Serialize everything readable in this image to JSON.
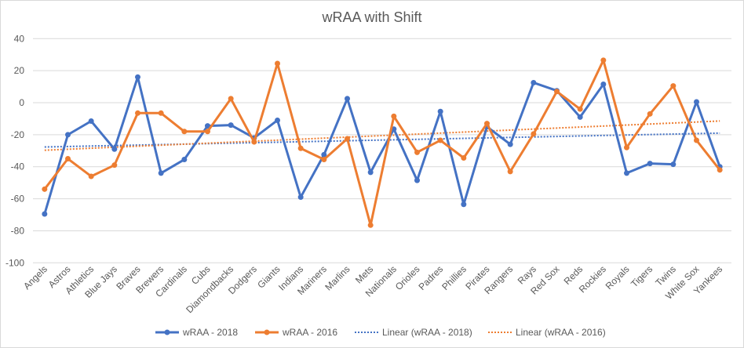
{
  "chart_data": {
    "type": "line",
    "title": "wRAA with Shift",
    "xlabel": "",
    "ylabel": "",
    "ylim": [
      -100,
      40
    ],
    "yticks": [
      40,
      20,
      0,
      -20,
      -40,
      -60,
      -80,
      -100
    ],
    "grid": true,
    "legend_position": "bottom",
    "categories": [
      "Angels",
      "Astros",
      "Athletics",
      "Blue Jays",
      "Braves",
      "Brewers",
      "Cardinals",
      "Cubs",
      "Diamondbacks",
      "Dodgers",
      "Giants",
      "Indians",
      "Mariners",
      "Marlins",
      "Mets",
      "Nationals",
      "Orioles",
      "Padres",
      "Phillies",
      "Pirates",
      "Rangers",
      "Rays",
      "Red Sox",
      "Reds",
      "Rockies",
      "Royals",
      "Tigers",
      "Twins",
      "White Sox",
      "Yankees"
    ],
    "series": [
      {
        "name": "wRAA - 2018",
        "color": "#4472c4",
        "values": [
          -69.5,
          -20,
          -11.5,
          -29,
          16,
          -44,
          -35.5,
          -14.5,
          -14,
          -22,
          -11,
          -59,
          -32.5,
          2.5,
          -43.5,
          -16.5,
          -48.5,
          -5.5,
          -63.5,
          -15,
          -26,
          12.5,
          7.5,
          -9,
          11.5,
          -44,
          -38,
          -38.5,
          0.5,
          -40
        ]
      },
      {
        "name": "wRAA - 2016",
        "color": "#ed7d31",
        "values": [
          -54,
          -35,
          -46,
          -39,
          -6.5,
          -6.5,
          -18,
          -18,
          2.5,
          -24.5,
          24.5,
          -28.5,
          -35.5,
          -22.5,
          -76.5,
          -8.5,
          -31,
          -23.5,
          -34.5,
          -13,
          -43,
          -19.5,
          7,
          -4,
          26.5,
          -28,
          -7,
          10.5,
          -23.5,
          -42
        ]
      }
    ],
    "trendlines": [
      {
        "name": "Linear (wRAA - 2018)",
        "of": "wRAA - 2018",
        "type": "linear",
        "color": "#4472c4"
      },
      {
        "name": "Linear (wRAA - 2016)",
        "of": "wRAA - 2016",
        "type": "linear",
        "color": "#ed7d31"
      }
    ]
  }
}
